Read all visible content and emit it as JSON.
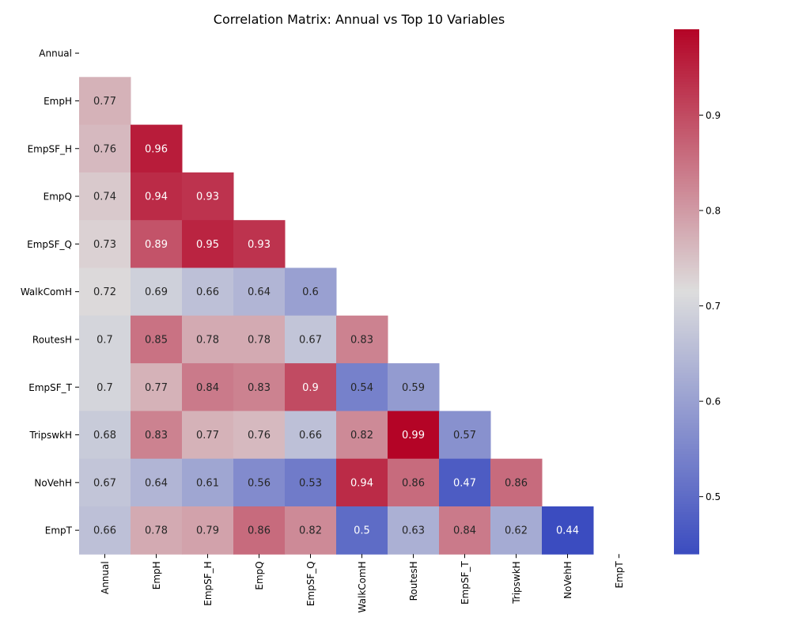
{
  "chart_data": {
    "type": "heatmap",
    "title": "Correlation Matrix: Annual vs Top 10 Variables",
    "variables": [
      "Annual",
      "EmpH",
      "EmpSF_H",
      "EmpQ",
      "EmpSF_Q",
      "WalkComH",
      "RoutesH",
      "EmpSF_T",
      "TripswkH",
      "NoVehH",
      "EmpT"
    ],
    "values": [
      [],
      [
        0.77
      ],
      [
        0.76,
        0.96
      ],
      [
        0.74,
        0.94,
        0.93
      ],
      [
        0.73,
        0.89,
        0.95,
        0.93
      ],
      [
        0.72,
        0.69,
        0.66,
        0.64,
        0.6
      ],
      [
        0.7,
        0.85,
        0.78,
        0.78,
        0.67,
        0.83
      ],
      [
        0.7,
        0.77,
        0.84,
        0.83,
        0.9,
        0.54,
        0.59
      ],
      [
        0.68,
        0.83,
        0.77,
        0.76,
        0.66,
        0.82,
        0.99,
        0.57
      ],
      [
        0.67,
        0.64,
        0.61,
        0.56,
        0.53,
        0.94,
        0.86,
        0.47,
        0.86
      ],
      [
        0.66,
        0.78,
        0.79,
        0.86,
        0.82,
        0.5,
        0.63,
        0.84,
        0.62,
        0.44
      ]
    ],
    "value_labels": [
      [],
      [
        "0.77"
      ],
      [
        "0.76",
        "0.96"
      ],
      [
        "0.74",
        "0.94",
        "0.93"
      ],
      [
        "0.73",
        "0.89",
        "0.95",
        "0.93"
      ],
      [
        "0.72",
        "0.69",
        "0.66",
        "0.64",
        "0.6"
      ],
      [
        "0.7",
        "0.85",
        "0.78",
        "0.78",
        "0.67",
        "0.83"
      ],
      [
        "0.7",
        "0.77",
        "0.84",
        "0.83",
        "0.9",
        "0.54",
        "0.59"
      ],
      [
        "0.68",
        "0.83",
        "0.77",
        "0.76",
        "0.66",
        "0.82",
        "0.99",
        "0.57"
      ],
      [
        "0.67",
        "0.64",
        "0.61",
        "0.56",
        "0.53",
        "0.94",
        "0.86",
        "0.47",
        "0.86"
      ],
      [
        "0.66",
        "0.78",
        "0.79",
        "0.86",
        "0.82",
        "0.5",
        "0.63",
        "0.84",
        "0.62",
        "0.44"
      ]
    ],
    "mask": "upper-triangle-and-diagonal",
    "colormap": "coolwarm",
    "colormap_stops": [
      "#3b4cc0",
      "#dddddd",
      "#b40426"
    ],
    "vmin": 0.44,
    "vmax": 0.99,
    "colorbar": {
      "placement": "right",
      "ticks": [
        0.5,
        0.6,
        0.7,
        0.8,
        0.9
      ],
      "tick_labels": [
        "0.5",
        "0.6",
        "0.7",
        "0.8",
        "0.9"
      ]
    }
  }
}
